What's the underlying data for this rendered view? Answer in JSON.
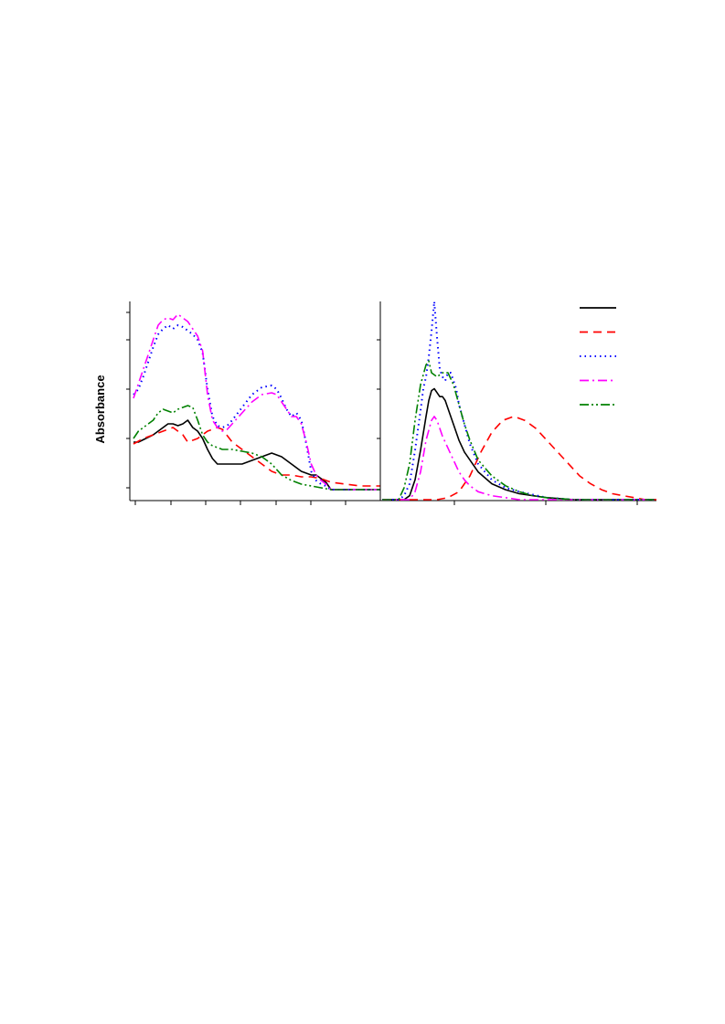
{
  "chart_data": [
    {
      "type": "line",
      "title": "",
      "xlabel": "",
      "ylabel": "Absorbance",
      "xlim": [
        0,
        100
      ],
      "ylim": [
        0,
        100
      ],
      "grid": false,
      "series": [
        {
          "color": "#000000",
          "dash": "solid",
          "x": [
            0,
            2,
            5,
            8,
            11,
            14,
            16,
            18,
            20,
            22,
            24,
            26,
            28,
            30,
            32,
            34,
            36,
            38,
            40,
            44,
            48,
            52,
            56,
            60,
            64,
            68,
            72,
            74,
            76,
            78,
            80,
            85,
            90,
            95,
            100
          ],
          "y": [
            26,
            26,
            28,
            30,
            33,
            36,
            36,
            35,
            36,
            38,
            34,
            32,
            28,
            22,
            17,
            14,
            14,
            14,
            14,
            14,
            16,
            18,
            20,
            18,
            14,
            10,
            8,
            8,
            6,
            4,
            0,
            0,
            0,
            0,
            0
          ]
        },
        {
          "color": "#ff0000",
          "dash": "dashed",
          "x": [
            0,
            4,
            8,
            12,
            16,
            20,
            22,
            26,
            30,
            34,
            36,
            40,
            44,
            48,
            52,
            56,
            60,
            64,
            68,
            72,
            76,
            80,
            86,
            92,
            100
          ],
          "y": [
            25,
            28,
            30,
            32,
            34,
            30,
            26,
            28,
            32,
            34,
            33,
            26,
            22,
            18,
            14,
            10,
            8,
            8,
            7,
            7,
            6,
            4,
            3,
            2,
            2
          ]
        },
        {
          "color": "#0000ff",
          "dash": "dotted",
          "x": [
            0,
            2,
            4,
            6,
            8,
            10,
            12,
            14,
            16,
            18,
            20,
            22,
            24,
            26,
            28,
            30,
            32,
            34,
            36,
            38,
            40,
            44,
            48,
            52,
            56,
            58,
            60,
            62,
            64,
            66,
            68,
            70,
            72,
            74,
            76,
            78,
            80,
            85,
            90,
            95,
            100
          ],
          "y": [
            52,
            55,
            62,
            70,
            78,
            85,
            88,
            90,
            88,
            90,
            89,
            87,
            85,
            82,
            75,
            55,
            40,
            35,
            34,
            35,
            38,
            45,
            52,
            56,
            57,
            55,
            50,
            44,
            40,
            42,
            38,
            25,
            10,
            5,
            3,
            2,
            0,
            0,
            0,
            0,
            0
          ]
        },
        {
          "color": "#ff00ff",
          "dash": "dashdot",
          "x": [
            0,
            2,
            4,
            6,
            8,
            10,
            12,
            14,
            16,
            18,
            20,
            22,
            24,
            26,
            28,
            30,
            32,
            34,
            36,
            38,
            40,
            44,
            48,
            52,
            56,
            58,
            60,
            62,
            64,
            66,
            68,
            70,
            72,
            74,
            76,
            78,
            80,
            85,
            90,
            95,
            100
          ],
          "y": [
            50,
            58,
            66,
            74,
            82,
            90,
            93,
            94,
            93,
            96,
            94,
            92,
            88,
            84,
            76,
            52,
            38,
            34,
            32,
            33,
            36,
            42,
            48,
            52,
            53,
            52,
            48,
            44,
            40,
            40,
            36,
            26,
            14,
            8,
            5,
            3,
            0,
            0,
            0,
            0,
            0
          ]
        },
        {
          "color": "#008000",
          "dash": "dashdotdot",
          "x": [
            0,
            2,
            4,
            6,
            8,
            10,
            12,
            14,
            16,
            18,
            20,
            22,
            24,
            26,
            28,
            30,
            32,
            34,
            36,
            40,
            44,
            48,
            52,
            56,
            60,
            64,
            68,
            72,
            76,
            80,
            85,
            90,
            95,
            100
          ],
          "y": [
            28,
            32,
            34,
            36,
            38,
            42,
            44,
            43,
            42,
            44,
            45,
            46,
            45,
            38,
            30,
            26,
            24,
            23,
            22,
            22,
            21,
            20,
            18,
            14,
            8,
            5,
            3,
            2,
            1,
            0,
            0,
            0,
            0,
            0
          ]
        }
      ]
    },
    {
      "type": "line",
      "title": "",
      "xlabel": "",
      "ylabel": "",
      "xlim": [
        0,
        100
      ],
      "ylim": [
        0,
        100
      ],
      "grid": false,
      "legend": "top-right",
      "series": [
        {
          "color": "#000000",
          "dash": "solid",
          "x": [
            0,
            8,
            10,
            12,
            14,
            16,
            17,
            18,
            19,
            20,
            21,
            22,
            23,
            24,
            26,
            28,
            30,
            35,
            40,
            45,
            50,
            60,
            70,
            80,
            100
          ],
          "y": [
            0,
            0,
            2,
            10,
            25,
            42,
            50,
            55,
            56,
            54,
            52,
            52,
            50,
            46,
            38,
            30,
            24,
            14,
            8,
            5,
            3,
            1,
            0,
            0,
            0
          ]
        },
        {
          "color": "#ff0000",
          "dash": "dashed",
          "x": [
            0,
            10,
            20,
            24,
            28,
            32,
            36,
            40,
            44,
            48,
            52,
            56,
            60,
            64,
            68,
            72,
            76,
            80,
            84,
            88,
            92,
            96,
            100
          ],
          "y": [
            0,
            0,
            0,
            1,
            4,
            12,
            24,
            34,
            40,
            42,
            40,
            36,
            30,
            24,
            18,
            12,
            8,
            5,
            3,
            2,
            1,
            0,
            0
          ]
        },
        {
          "color": "#0000ff",
          "dash": "dotted",
          "x": [
            0,
            6,
            8,
            10,
            12,
            14,
            15,
            16,
            17,
            18,
            19,
            20,
            21,
            22,
            23,
            24,
            25,
            26,
            27,
            28,
            30,
            32,
            35,
            40,
            45,
            50,
            60,
            70,
            80,
            100
          ],
          "y": [
            0,
            0,
            2,
            8,
            25,
            45,
            56,
            62,
            72,
            85,
            100,
            82,
            66,
            62,
            60,
            64,
            64,
            60,
            56,
            48,
            38,
            28,
            18,
            10,
            6,
            4,
            1,
            0,
            0,
            0
          ]
        },
        {
          "color": "#ff00ff",
          "dash": "dashdot",
          "x": [
            0,
            10,
            12,
            14,
            16,
            18,
            19,
            20,
            21,
            22,
            24,
            26,
            28,
            30,
            32,
            35,
            40,
            45,
            50,
            60,
            70,
            80,
            100
          ],
          "y": [
            0,
            0,
            4,
            14,
            30,
            40,
            42,
            40,
            36,
            32,
            26,
            20,
            14,
            10,
            7,
            4,
            2,
            1,
            0,
            0,
            0,
            0,
            0
          ]
        },
        {
          "color": "#008000",
          "dash": "dashdotdot",
          "x": [
            0,
            6,
            8,
            10,
            12,
            14,
            16,
            17,
            18,
            20,
            22,
            24,
            26,
            28,
            30,
            32,
            35,
            40,
            45,
            50,
            55,
            60,
            70,
            80,
            100
          ],
          "y": [
            0,
            0,
            6,
            18,
            40,
            58,
            68,
            70,
            64,
            62,
            64,
            64,
            58,
            48,
            38,
            30,
            20,
            12,
            7,
            4,
            2,
            1,
            0,
            0,
            0
          ]
        }
      ]
    }
  ]
}
